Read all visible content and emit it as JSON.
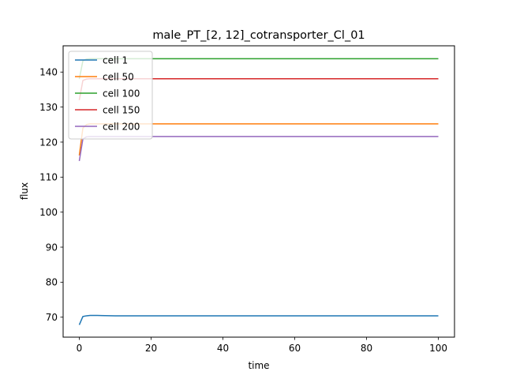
{
  "chart_data": {
    "type": "line",
    "title": "male_PT_[2, 12]_cotransporter_Cl_01",
    "xlabel": "time",
    "ylabel": "flux",
    "xlim": [
      -4.5,
      104.5
    ],
    "ylim": [
      64.3,
      147.5
    ],
    "xticks": [
      0,
      20,
      40,
      60,
      80,
      100
    ],
    "yticks": [
      70,
      80,
      90,
      100,
      110,
      120,
      130,
      140
    ],
    "grid": false,
    "legend_position": "upper-left",
    "series": [
      {
        "name": "cell 1",
        "color": "#1f77b4",
        "x": [
          0,
          1,
          2,
          3,
          5,
          10,
          100
        ],
        "y": [
          67.8,
          70.2,
          70.4,
          70.5,
          70.5,
          70.4,
          70.4
        ]
      },
      {
        "name": "cell 50",
        "color": "#ff7f0e",
        "x": [
          0,
          1,
          2,
          3,
          5,
          100
        ],
        "y": [
          116.2,
          124.0,
          125.0,
          125.2,
          125.2,
          125.2
        ]
      },
      {
        "name": "cell 100",
        "color": "#2ca02c",
        "x": [
          0,
          1,
          2,
          3,
          5,
          100
        ],
        "y": [
          138.0,
          143.2,
          143.7,
          143.8,
          143.8,
          143.8
        ]
      },
      {
        "name": "cell 150",
        "color": "#d62728",
        "x": [
          0,
          1,
          2,
          3,
          5,
          100
        ],
        "y": [
          132.0,
          137.6,
          138.0,
          138.1,
          138.1,
          138.1
        ]
      },
      {
        "name": "cell 200",
        "color": "#9467bd",
        "x": [
          0,
          1,
          2,
          3,
          5,
          100
        ],
        "y": [
          114.6,
          120.9,
          121.5,
          121.6,
          121.6,
          121.6
        ]
      }
    ]
  }
}
